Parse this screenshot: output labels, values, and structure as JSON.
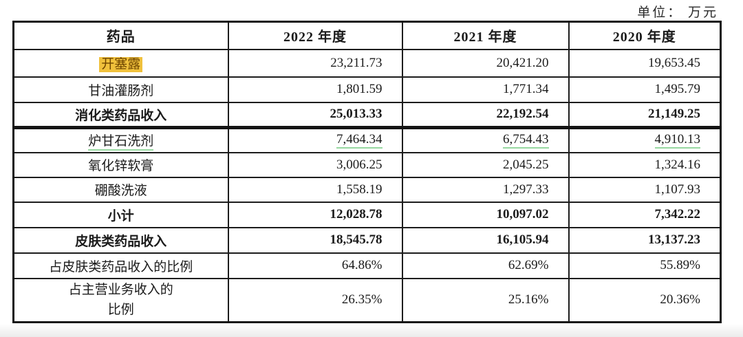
{
  "unit_label": "单位： 万元",
  "table": {
    "headers": [
      "药品",
      "2022 年度",
      "2021 年度",
      "2020 年度"
    ],
    "rows": [
      {
        "name": "开塞露",
        "values": [
          "23,211.73",
          "20,421.20",
          "19,653.45"
        ]
      },
      {
        "name": "甘油灌肠剂",
        "values": [
          "1,801.59",
          "1,771.34",
          "1,495.79"
        ]
      },
      {
        "name": "消化类药品收入",
        "values": [
          "25,013.33",
          "22,192.54",
          "21,149.25"
        ]
      },
      {
        "name": "炉甘石洗剂",
        "values": [
          "7,464.34",
          "6,754.43",
          "4,910.13"
        ]
      },
      {
        "name": "氧化锌软膏",
        "values": [
          "3,006.25",
          "2,045.25",
          "1,324.16"
        ]
      },
      {
        "name": "硼酸洗液",
        "values": [
          "1,558.19",
          "1,297.33",
          "1,107.93"
        ]
      },
      {
        "name": "小计",
        "values": [
          "12,028.78",
          "10,097.02",
          "7,342.22"
        ]
      },
      {
        "name": "皮肤类药品收入",
        "values": [
          "18,545.78",
          "16,105.94",
          "13,137.23"
        ]
      },
      {
        "name": "占皮肤类药品收入的比例",
        "values": [
          "64.86%",
          "62.69%",
          "55.89%"
        ]
      },
      {
        "name": "占主营业务收入的\n比例",
        "values": [
          "26.35%",
          "25.16%",
          "20.36%"
        ]
      }
    ]
  },
  "colors": {
    "highlight_bg": "#f0c13c",
    "highlight_text": "#6e4500",
    "green_underline": "#96d7a0",
    "border": "#1c1c1c"
  }
}
